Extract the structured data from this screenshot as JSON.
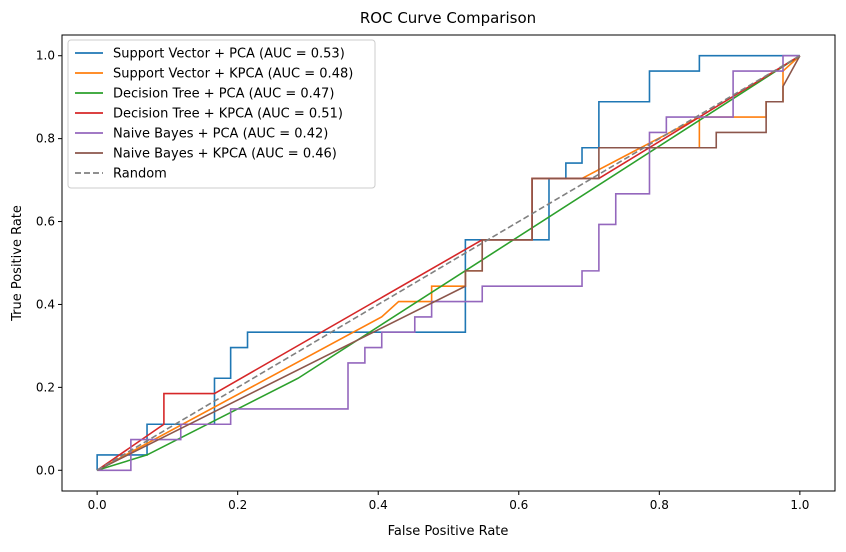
{
  "chart_data": {
    "type": "line",
    "title": "ROC Curve Comparison",
    "xlabel": "False Positive Rate",
    "ylabel": "True Positive Rate",
    "xlim": [
      -0.05,
      1.05
    ],
    "ylim": [
      -0.05,
      1.05
    ],
    "xticks": [
      0.0,
      0.2,
      0.4,
      0.6,
      0.8,
      1.0
    ],
    "yticks": [
      0.0,
      0.2,
      0.4,
      0.6,
      0.8,
      1.0
    ],
    "tick_labels": [
      "0.0",
      "0.2",
      "0.4",
      "0.6",
      "0.8",
      "1.0"
    ],
    "grid": false,
    "legend_position": "top-left",
    "series": [
      {
        "name": "Support Vector + PCA (AUC = 0.53)",
        "color": "#1f77b4",
        "points": [
          [
            0,
            0
          ],
          [
            0,
            0.037
          ],
          [
            0.071,
            0.037
          ],
          [
            0.071,
            0.111
          ],
          [
            0.167,
            0.111
          ],
          [
            0.167,
            0.222
          ],
          [
            0.19,
            0.222
          ],
          [
            0.19,
            0.296
          ],
          [
            0.214,
            0.296
          ],
          [
            0.214,
            0.333
          ],
          [
            0.524,
            0.333
          ],
          [
            0.524,
            0.556
          ],
          [
            0.643,
            0.556
          ],
          [
            0.643,
            0.704
          ],
          [
            0.667,
            0.704
          ],
          [
            0.667,
            0.741
          ],
          [
            0.69,
            0.741
          ],
          [
            0.69,
            0.778
          ],
          [
            0.714,
            0.778
          ],
          [
            0.714,
            0.889
          ],
          [
            0.786,
            0.889
          ],
          [
            0.786,
            0.963
          ],
          [
            0.857,
            0.963
          ],
          [
            0.857,
            1.0
          ],
          [
            1.0,
            1.0
          ]
        ]
      },
      {
        "name": "Support Vector + KPCA (AUC = 0.48)",
        "color": "#ff7f0e",
        "points": [
          [
            0,
            0
          ],
          [
            0.405,
            0.37
          ],
          [
            0.429,
            0.407
          ],
          [
            0.476,
            0.407
          ],
          [
            0.476,
            0.444
          ],
          [
            0.524,
            0.444
          ],
          [
            0.524,
            0.481
          ],
          [
            0.548,
            0.481
          ],
          [
            0.548,
            0.556
          ],
          [
            0.571,
            0.556
          ],
          [
            0.595,
            0.556
          ],
          [
            0.619,
            0.556
          ],
          [
            0.619,
            0.704
          ],
          [
            0.69,
            0.704
          ],
          [
            0.857,
            0.852
          ],
          [
            0.857,
            0.778
          ],
          [
            0.857,
            0.852
          ],
          [
            0.952,
            0.852
          ],
          [
            0.952,
            0.889
          ],
          [
            0.976,
            0.889
          ],
          [
            0.976,
            0.963
          ],
          [
            1.0,
            1.0
          ]
        ]
      },
      {
        "name": "Decision Tree + PCA (AUC = 0.47)",
        "color": "#2ca02c",
        "points": [
          [
            0,
            0
          ],
          [
            0.071,
            0.037
          ],
          [
            0.286,
            0.222
          ],
          [
            1.0,
            1.0
          ]
        ]
      },
      {
        "name": "Decision Tree + KPCA (AUC = 0.51)",
        "color": "#d62728",
        "points": [
          [
            0,
            0
          ],
          [
            0.095,
            0.111
          ],
          [
            0.095,
            0.185
          ],
          [
            0.167,
            0.185
          ],
          [
            0.548,
            0.556
          ],
          [
            0.619,
            0.556
          ],
          [
            0.619,
            0.704
          ],
          [
            0.714,
            0.704
          ],
          [
            1.0,
            1.0
          ]
        ]
      },
      {
        "name": "Naive Bayes + PCA (AUC = 0.42)",
        "color": "#9467bd",
        "points": [
          [
            0,
            0
          ],
          [
            0.048,
            0
          ],
          [
            0.048,
            0.074
          ],
          [
            0.119,
            0.074
          ],
          [
            0.119,
            0.111
          ],
          [
            0.19,
            0.111
          ],
          [
            0.19,
            0.148
          ],
          [
            0.357,
            0.148
          ],
          [
            0.357,
            0.259
          ],
          [
            0.381,
            0.259
          ],
          [
            0.381,
            0.296
          ],
          [
            0.405,
            0.296
          ],
          [
            0.405,
            0.333
          ],
          [
            0.452,
            0.333
          ],
          [
            0.452,
            0.37
          ],
          [
            0.476,
            0.37
          ],
          [
            0.476,
            0.407
          ],
          [
            0.548,
            0.407
          ],
          [
            0.548,
            0.444
          ],
          [
            0.69,
            0.444
          ],
          [
            0.69,
            0.481
          ],
          [
            0.714,
            0.481
          ],
          [
            0.714,
            0.593
          ],
          [
            0.738,
            0.593
          ],
          [
            0.738,
            0.667
          ],
          [
            0.786,
            0.667
          ],
          [
            0.786,
            0.815
          ],
          [
            0.81,
            0.815
          ],
          [
            0.81,
            0.852
          ],
          [
            0.905,
            0.852
          ],
          [
            0.905,
            0.963
          ],
          [
            0.976,
            0.963
          ],
          [
            0.976,
            1.0
          ],
          [
            1.0,
            1.0
          ]
        ]
      },
      {
        "name": "Naive Bayes + KPCA (AUC = 0.46)",
        "color": "#8c564b",
        "points": [
          [
            0,
            0
          ],
          [
            0.524,
            0.444
          ],
          [
            0.524,
            0.481
          ],
          [
            0.548,
            0.481
          ],
          [
            0.548,
            0.556
          ],
          [
            0.619,
            0.556
          ],
          [
            0.619,
            0.704
          ],
          [
            0.714,
            0.704
          ],
          [
            0.714,
            0.778
          ],
          [
            0.881,
            0.778
          ],
          [
            0.881,
            0.815
          ],
          [
            0.952,
            0.815
          ],
          [
            0.952,
            0.889
          ],
          [
            0.976,
            0.889
          ],
          [
            0.976,
            0.926
          ],
          [
            1.0,
            1.0
          ]
        ]
      },
      {
        "name": "Random",
        "color": "#808080",
        "dashed": true,
        "points": [
          [
            0,
            0
          ],
          [
            1,
            1
          ]
        ]
      }
    ]
  }
}
